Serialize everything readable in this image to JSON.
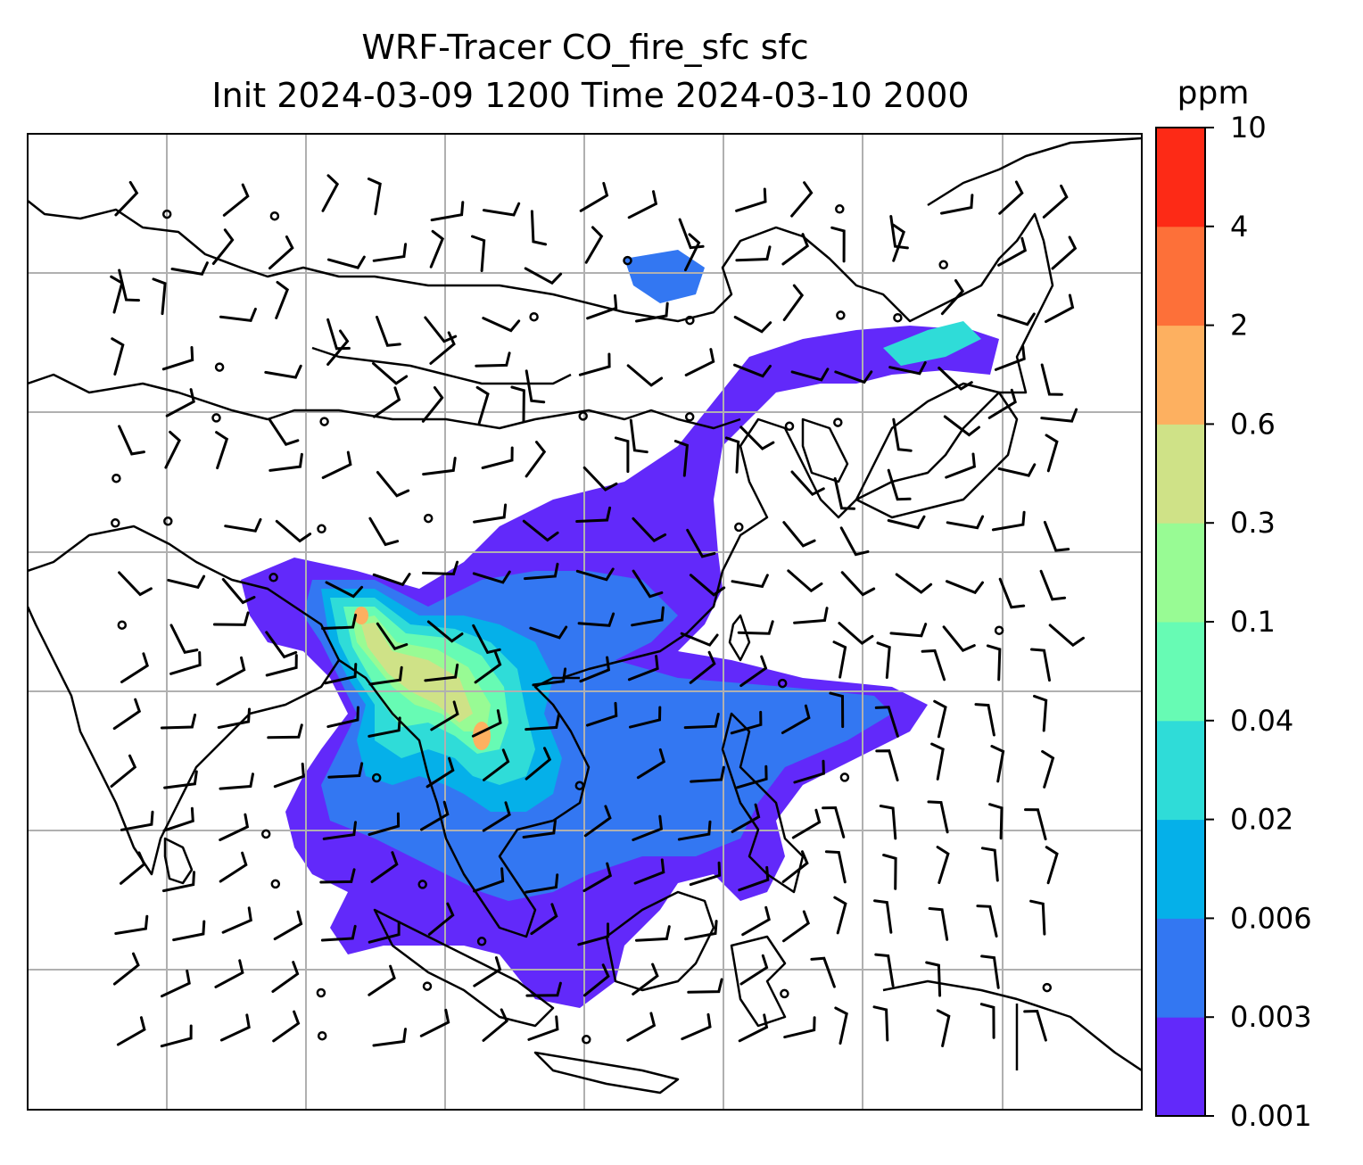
{
  "title": {
    "line1": "WRF-Tracer CO_fire_sfc sfc",
    "line2": "Init 2024-03-09 1200 Time 2024-03-10 2000"
  },
  "colorbar": {
    "unit": "ppm",
    "levels": [
      "0.001",
      "0.003",
      "0.006",
      "0.02",
      "0.04",
      "0.1",
      "0.3",
      "0.6",
      "2",
      "4",
      "10"
    ],
    "colors": [
      "#6229fa",
      "#3377f2",
      "#05b0e9",
      "#2fdcd8",
      "#67fbb4",
      "#98fb94",
      "#cfe287",
      "#fdb060",
      "#fd7039",
      "#fd2a16"
    ]
  },
  "map": {
    "grid_color": "#b0b0b0",
    "coast_color": "#000000"
  }
}
